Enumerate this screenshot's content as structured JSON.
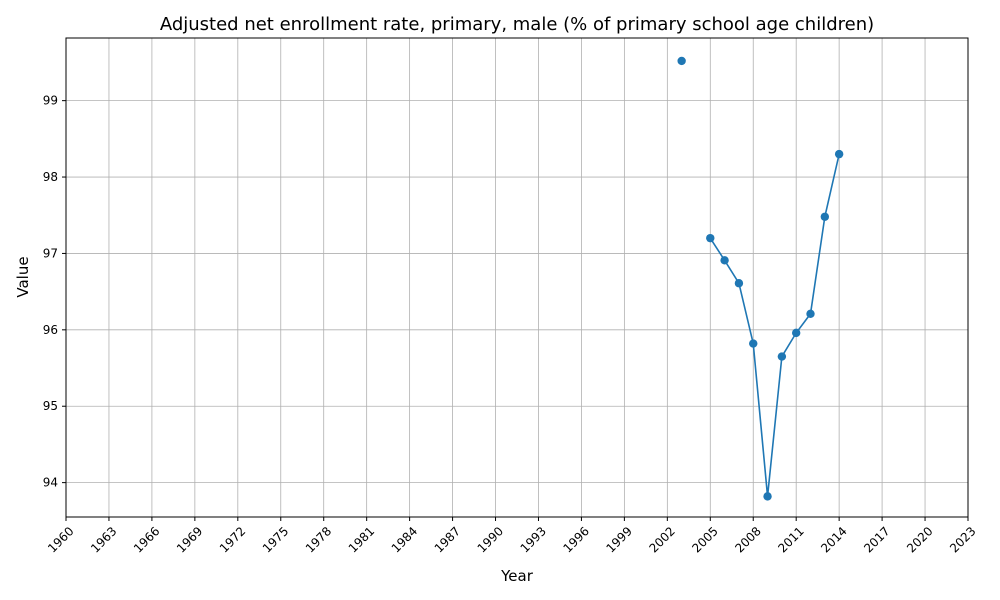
{
  "chart_data": {
    "type": "line",
    "title": "Adjusted net enrollment rate, primary, male (% of primary school age children)",
    "xlabel": "Year",
    "ylabel": "Value",
    "xlim": [
      1960,
      2023
    ],
    "ylim": [
      93.55,
      99.82
    ],
    "x_ticks": [
      1960,
      1963,
      1966,
      1969,
      1972,
      1975,
      1978,
      1981,
      1984,
      1987,
      1990,
      1993,
      1996,
      1999,
      2002,
      2005,
      2008,
      2011,
      2014,
      2017,
      2020,
      2023
    ],
    "y_ticks": [
      94,
      95,
      96,
      97,
      98,
      99
    ],
    "grid": true,
    "series_color": "#1f77b4",
    "series": [
      {
        "marker": "circle",
        "segments": [
          [
            {
              "x": 2003,
              "y": 99.52
            }
          ],
          [
            {
              "x": 2005,
              "y": 97.2
            },
            {
              "x": 2006,
              "y": 96.91
            },
            {
              "x": 2007,
              "y": 96.61
            },
            {
              "x": 2008,
              "y": 95.82
            },
            {
              "x": 2009,
              "y": 93.82
            },
            {
              "x": 2010,
              "y": 95.65
            },
            {
              "x": 2011,
              "y": 95.96
            },
            {
              "x": 2012,
              "y": 96.21
            },
            {
              "x": 2013,
              "y": 97.48
            },
            {
              "x": 2014,
              "y": 98.3
            }
          ]
        ]
      }
    ]
  }
}
